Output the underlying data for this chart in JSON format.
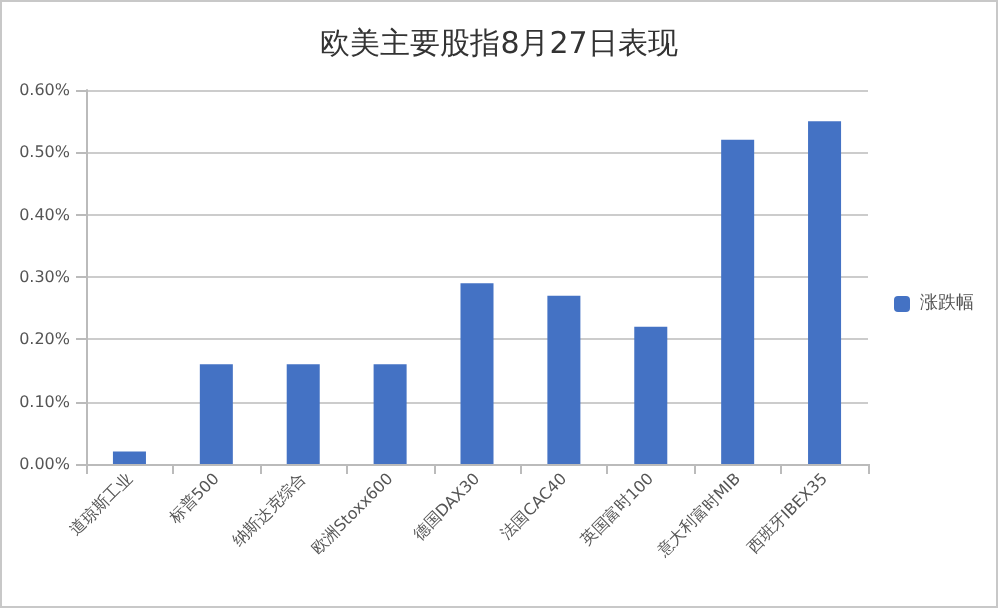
{
  "chart_data": {
    "type": "bar",
    "title": "欧美主要股指8月27日表现",
    "categories": [
      "道琼斯工业",
      "标普500",
      "纳斯达克综合",
      "欧洲Stoxx600",
      "德国DAX30",
      "法国CAC40",
      "英国富时100",
      "意大利富时MIB",
      "西班牙IBEX35"
    ],
    "series": [
      {
        "name": "涨跌幅",
        "color": "#4472c4",
        "values": [
          0.02,
          0.16,
          0.16,
          0.16,
          0.29,
          0.27,
          0.22,
          0.52,
          0.55
        ]
      }
    ],
    "ylim": [
      0,
      0.6
    ],
    "yticks": [
      {
        "value": 0,
        "label": "0.00%"
      },
      {
        "value": 0.1,
        "label": "0.10%"
      },
      {
        "value": 0.2,
        "label": "0.20%"
      },
      {
        "value": 0.3,
        "label": "0.30%"
      },
      {
        "value": 0.4,
        "label": "0.40%"
      },
      {
        "value": 0.5,
        "label": "0.50%"
      },
      {
        "value": 0.6,
        "label": "0.60%"
      }
    ],
    "grid": "y",
    "legend": "right"
  }
}
